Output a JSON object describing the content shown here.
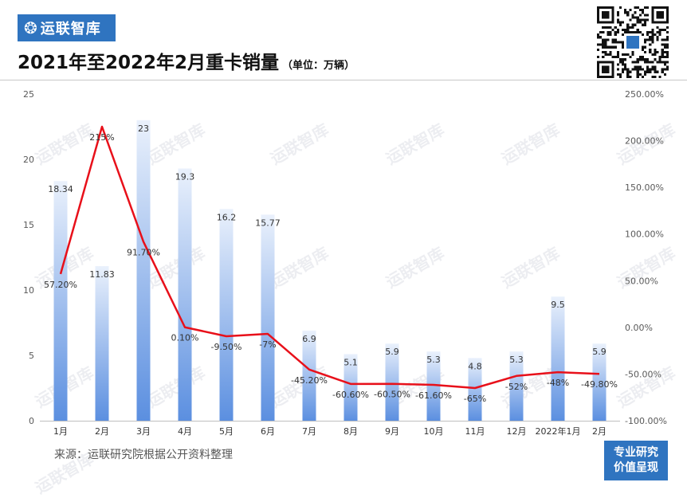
{
  "brand": {
    "logo_text": "运联智库",
    "logo_icon": "swirl-logo-icon",
    "color": "#2f74c0"
  },
  "header": {
    "title": "2021年至2022年2月重卡销量",
    "unit": "（单位：万辆）"
  },
  "footer": {
    "source": "来源：运联研究院根据公开资料整理",
    "badge_line1": "专业研究",
    "badge_line2": "价值呈现"
  },
  "watermark": "运联智库",
  "chart_data": {
    "type": "bar",
    "categories": [
      "1月",
      "2月",
      "3月",
      "4月",
      "5月",
      "6月",
      "7月",
      "8月",
      "9月",
      "10月",
      "11月",
      "12月",
      "2022年1月",
      "2月"
    ],
    "series": [
      {
        "kind": "bar",
        "values": [
          18.34,
          11.83,
          23,
          19.3,
          16.2,
          15.77,
          6.9,
          5.1,
          5.9,
          5.3,
          4.8,
          5.3,
          9.5,
          5.9
        ],
        "labels": [
          "18.34",
          "11.83",
          "23",
          "19.3",
          "16.2",
          "15.77",
          "6.9",
          "5.1",
          "5.9",
          "5.3",
          "4.8",
          "5.3",
          "9.5",
          "5.9"
        ],
        "color": "#5b8fe0"
      },
      {
        "kind": "line",
        "axis": "right",
        "values": [
          57.2,
          215,
          91.7,
          0.1,
          -9.5,
          -7,
          -45.2,
          -60.6,
          -60.5,
          -61.6,
          -65,
          -52,
          -48,
          -49.8
        ],
        "labels": [
          "57.20%",
          "215%",
          "91.70%",
          "0.10%",
          "-9.50%",
          "-7%",
          "-45.20%",
          "-60.60%",
          "-60.50%",
          "-61.60%",
          "-65%",
          "-52%",
          "-48%",
          "-49.80%"
        ],
        "color": "#e8101a"
      }
    ],
    "y_left": {
      "min": 0,
      "max": 25,
      "ticks": [
        "0",
        "5",
        "10",
        "15",
        "20",
        "25"
      ]
    },
    "y_right": {
      "min": -100,
      "max": 250,
      "ticks": [
        "-100.00%",
        "-50.00%",
        "0.00%",
        "50.00%",
        "100.00%",
        "150.00%",
        "200.00%",
        "250.00%"
      ]
    }
  }
}
